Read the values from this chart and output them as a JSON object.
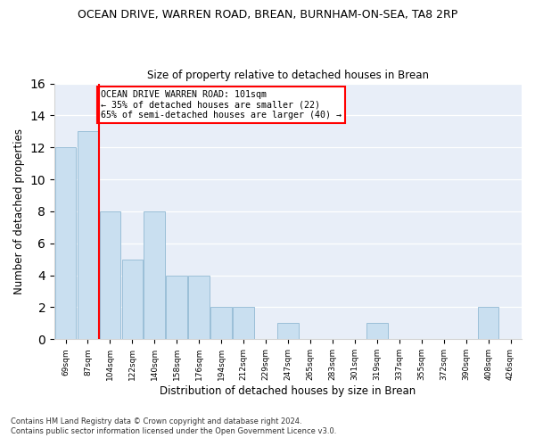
{
  "title": "OCEAN DRIVE, WARREN ROAD, BREAN, BURNHAM-ON-SEA, TA8 2RP",
  "subtitle": "Size of property relative to detached houses in Brean",
  "xlabel": "Distribution of detached houses by size in Brean",
  "ylabel": "Number of detached properties",
  "bins": [
    "69sqm",
    "87sqm",
    "104sqm",
    "122sqm",
    "140sqm",
    "158sqm",
    "176sqm",
    "194sqm",
    "212sqm",
    "229sqm",
    "247sqm",
    "265sqm",
    "283sqm",
    "301sqm",
    "319sqm",
    "337sqm",
    "355sqm",
    "372sqm",
    "390sqm",
    "408sqm",
    "426sqm"
  ],
  "counts": [
    12,
    13,
    8,
    5,
    8,
    4,
    4,
    2,
    2,
    0,
    1,
    0,
    0,
    0,
    1,
    0,
    0,
    0,
    0,
    2,
    0
  ],
  "bar_color": "#c9dff0",
  "bar_edge_color": "#9bbfd8",
  "red_line_x": 2,
  "annotation_title": "OCEAN DRIVE WARREN ROAD: 101sqm",
  "annotation_line1": "← 35% of detached houses are smaller (22)",
  "annotation_line2": "65% of semi-detached houses are larger (40) →",
  "ylim": [
    0,
    16
  ],
  "yticks": [
    0,
    2,
    4,
    6,
    8,
    10,
    12,
    14,
    16
  ],
  "bg_color": "#e8eef8",
  "footer1": "Contains HM Land Registry data © Crown copyright and database right 2024.",
  "footer2": "Contains public sector information licensed under the Open Government Licence v3.0."
}
